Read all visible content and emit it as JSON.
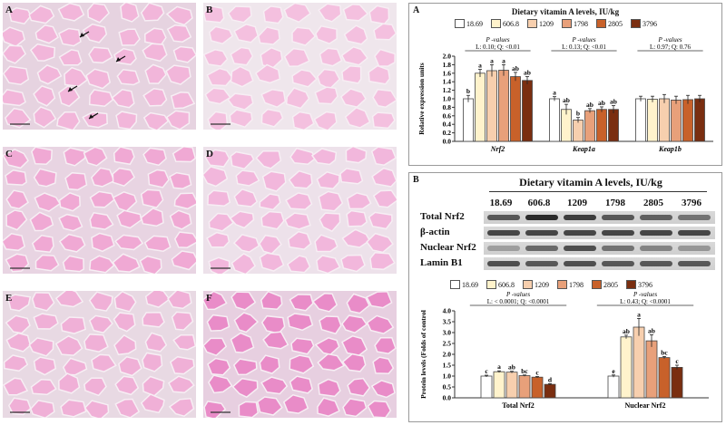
{
  "micrographs": [
    {
      "label": "A",
      "color": "#f2b6da",
      "bg": "#e6d3e0",
      "arrows": true
    },
    {
      "label": "B",
      "color": "#f4c0df",
      "bg": "#efe6ec",
      "arrows": false
    },
    {
      "label": "C",
      "color": "#f0a9d4",
      "bg": "#e8d4e2",
      "arrows": false
    },
    {
      "label": "D",
      "color": "#f2b7dc",
      "bg": "#ede1ea",
      "arrows": false
    },
    {
      "label": "E",
      "color": "#f0b0d7",
      "bg": "#e8d9e3",
      "arrows": false
    },
    {
      "label": "F",
      "color": "#e98cc8",
      "bg": "#e7cfe0",
      "arrows": false
    }
  ],
  "colors": {
    "18.69": "#ffffff",
    "606.8": "#fff3cc",
    "1209": "#f7cfae",
    "1798": "#e8a07a",
    "2805": "#c8612a",
    "3796": "#7a2e10"
  },
  "panelA": {
    "label": "A",
    "title": "Dietary vitamin A levels, IU/kg",
    "legend": [
      "18.69",
      "606.8",
      "1209",
      "1798",
      "2805",
      "3796"
    ],
    "pvalues": [
      {
        "head": "P -values",
        "stat": "L: 0.10; Q: <0.01"
      },
      {
        "head": "P -values",
        "stat": "L: 0.13; Q: <0.01"
      },
      {
        "head": "P -values",
        "stat": "L: 0.97; Q: 0.76"
      }
    ]
  },
  "panelB": {
    "label": "B",
    "title": "Dietary vitamin A levels, IU/kg",
    "lanes": [
      "18.69",
      "606.8",
      "1209",
      "1798",
      "2805",
      "3796"
    ],
    "blot_rows": [
      "Total Nrf2",
      "β-actin",
      "Nuclear Nrf2",
      "Lamin B1"
    ],
    "legend": [
      "18.69",
      "606.8",
      "1209",
      "1798",
      "2805",
      "3796"
    ],
    "pvalues": [
      {
        "head": "P -values",
        "stat": "L: < 0.0001; Q: <0.0001"
      },
      {
        "head": "P -values",
        "stat": "L: 0.43; Q: <0.0001"
      }
    ]
  },
  "chart_data": [
    {
      "type": "bar",
      "categories": [
        "Nrf2",
        "Keap1a",
        "Keap1b"
      ],
      "ylabel": "Relative expression units",
      "ylim": [
        0,
        2.0
      ],
      "yticks": [
        "0.0",
        "0.2",
        "0.4",
        "0.6",
        "0.8",
        "1.0",
        "1.2",
        "1.4",
        "1.6",
        "1.8",
        "2.0"
      ],
      "series": [
        {
          "name": "18.69",
          "values": [
            1.0,
            1.0,
            1.0
          ],
          "err": [
            0.08,
            0.05,
            0.06
          ],
          "letters": [
            "b",
            "a",
            ""
          ]
        },
        {
          "name": "606.8",
          "values": [
            1.6,
            0.75,
            0.99
          ],
          "err": [
            0.09,
            0.12,
            0.07
          ],
          "letters": [
            "a",
            "ab",
            ""
          ]
        },
        {
          "name": "1209",
          "values": [
            1.66,
            0.5,
            1.0
          ],
          "err": [
            0.14,
            0.06,
            0.1
          ],
          "letters": [
            "a",
            "b",
            ""
          ]
        },
        {
          "name": "1798",
          "values": [
            1.67,
            0.72,
            0.97
          ],
          "err": [
            0.13,
            0.05,
            0.09
          ],
          "letters": [
            "a",
            "ab",
            ""
          ]
        },
        {
          "name": "2805",
          "values": [
            1.52,
            0.75,
            0.98
          ],
          "err": [
            0.1,
            0.06,
            0.1
          ],
          "letters": [
            "ab",
            "ab",
            ""
          ]
        },
        {
          "name": "3796",
          "values": [
            1.43,
            0.75,
            1.0
          ],
          "err": [
            0.09,
            0.09,
            0.08
          ],
          "letters": [
            "ab",
            "ab",
            ""
          ]
        }
      ]
    },
    {
      "type": "bar",
      "categories": [
        "Total Nrf2",
        "Nuclear Nrf2"
      ],
      "ylabel": "Protein levels (Folds of control",
      "ylim": [
        0,
        4.0
      ],
      "yticks": [
        "0.0",
        "0.5",
        "1.0",
        "1.5",
        "2.0",
        "2.5",
        "3.0",
        "3.5",
        "4.0"
      ],
      "series": [
        {
          "name": "18.69",
          "values": [
            1.0,
            1.0
          ],
          "err": [
            0.04,
            0.05
          ],
          "letters": [
            "c",
            "e"
          ]
        },
        {
          "name": "606.8",
          "values": [
            1.2,
            2.8
          ],
          "err": [
            0.04,
            0.08
          ],
          "letters": [
            "a",
            "ab"
          ]
        },
        {
          "name": "1209",
          "values": [
            1.18,
            3.25
          ],
          "err": [
            0.04,
            0.4
          ],
          "letters": [
            "ab",
            "a"
          ]
        },
        {
          "name": "1798",
          "values": [
            1.02,
            2.62
          ],
          "err": [
            0.03,
            0.28
          ],
          "letters": [
            "bc",
            "ab"
          ]
        },
        {
          "name": "2805",
          "values": [
            0.95,
            1.85
          ],
          "err": [
            0.03,
            0.05
          ],
          "letters": [
            "c",
            "bc"
          ]
        },
        {
          "name": "3796",
          "values": [
            0.62,
            1.4
          ],
          "err": [
            0.03,
            0.1
          ],
          "letters": [
            "d",
            "c"
          ]
        }
      ]
    }
  ]
}
